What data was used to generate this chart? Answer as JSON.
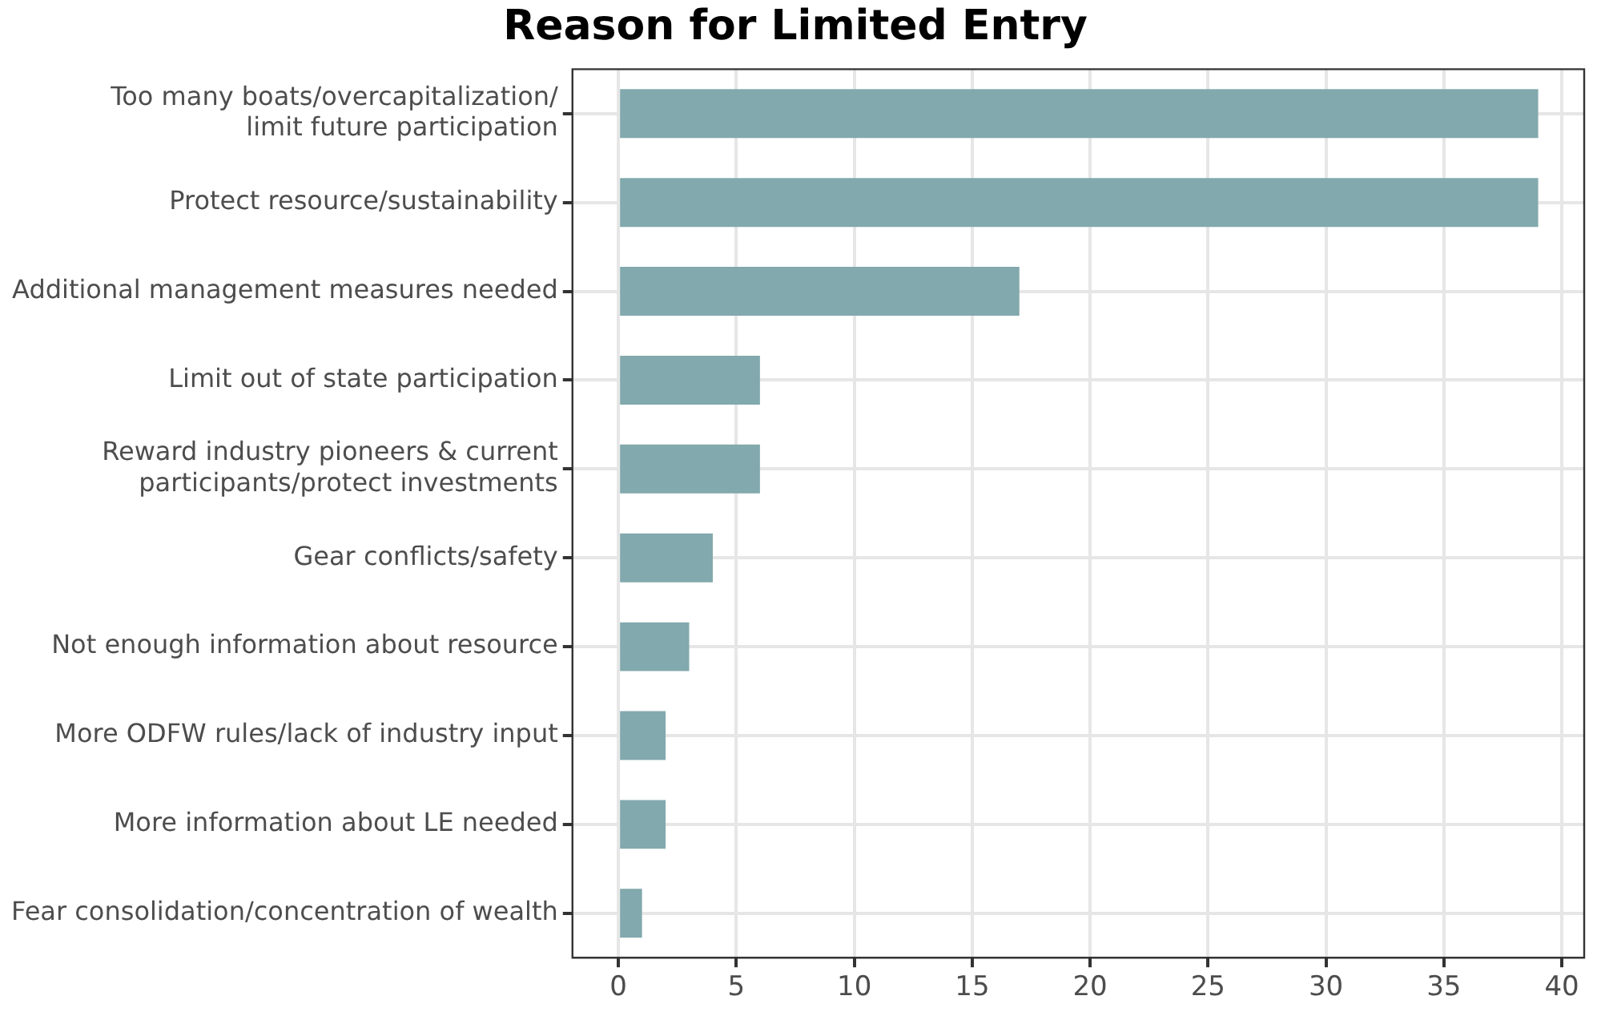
{
  "chart_data": {
    "type": "bar",
    "orientation": "horizontal",
    "title": "Reason for Limited Entry",
    "categories": [
      "Too many boats/overcapitalization/\nlimit future participation",
      "Protect resource/sustainability",
      "Additional management measures needed",
      "Limit out of state participation",
      "Reward industry pioneers & current\nparticipants/protect investments",
      "Gear conflicts/safety",
      "Not enough information about resource",
      "More ODFW rules/lack of industry input",
      "More information about LE needed",
      "Fear consolidation/concentration of wealth"
    ],
    "values": [
      39,
      39,
      17,
      6,
      6,
      4,
      3,
      2,
      2,
      1
    ],
    "color": "#82a9ad",
    "xlim": [
      -1.95,
      40.95
    ],
    "xticks": [
      0,
      5,
      10,
      15,
      20,
      25,
      30,
      35,
      40
    ],
    "grid": true,
    "legend": false
  }
}
